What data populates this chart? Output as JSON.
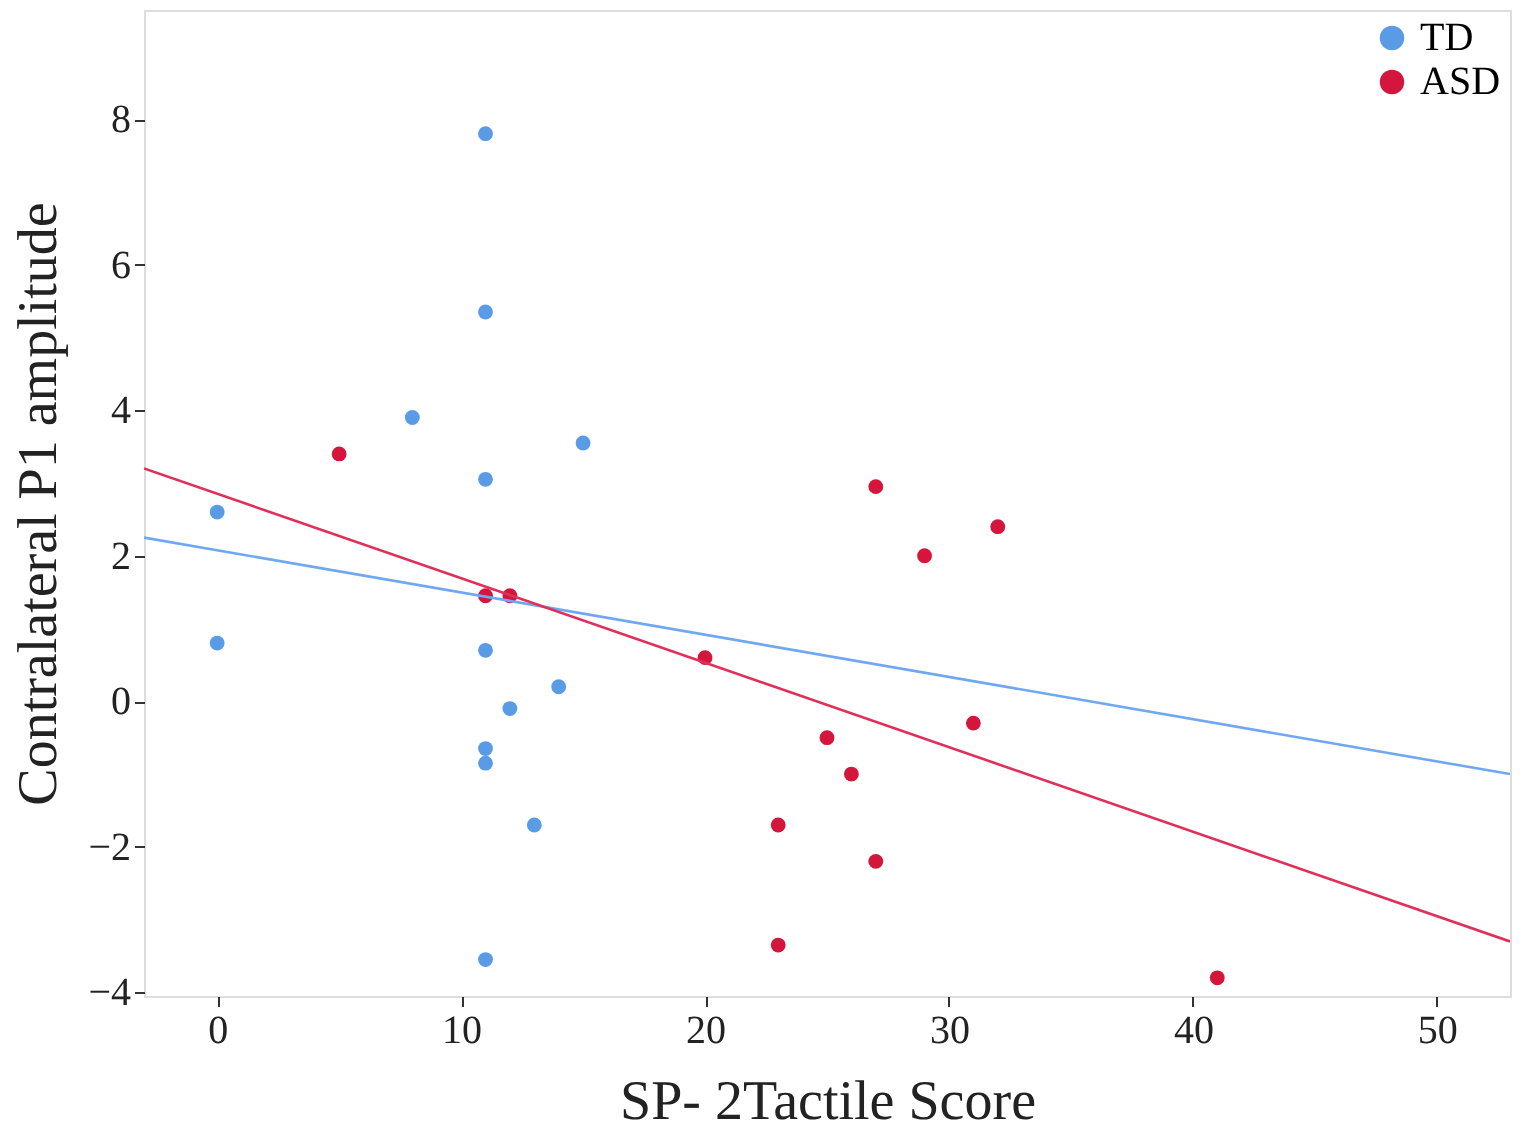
{
  "chart_data": {
    "type": "scatter",
    "xlabel": "SP- 2Tactile Score",
    "ylabel": "Contralateral P1 amplitude",
    "xlim": [
      -3,
      53
    ],
    "ylim": [
      -4.05,
      9.5
    ],
    "xticks": [
      0,
      10,
      20,
      30,
      40,
      50
    ],
    "yticks": [
      -4,
      -2,
      0,
      2,
      4,
      6,
      8
    ],
    "grid": false,
    "legend": "top right",
    "marker": "circle",
    "series": [
      {
        "name": "TD",
        "color": "#5a9be6",
        "x": [
          11,
          11,
          8,
          11,
          15,
          0,
          0,
          11,
          12,
          14,
          11,
          11,
          13,
          11
        ],
        "values": [
          7.8,
          5.35,
          3.9,
          3.05,
          3.55,
          2.6,
          0.8,
          0.7,
          -0.1,
          0.2,
          -0.65,
          -0.85,
          -1.7,
          -3.55
        ]
      },
      {
        "name": "ASD",
        "color": "#d4163c",
        "x": [
          5,
          11,
          12,
          20,
          27,
          29,
          32,
          25,
          26,
          31,
          23,
          27,
          23,
          41
        ],
        "values": [
          3.4,
          1.45,
          1.45,
          0.6,
          2.95,
          2.0,
          2.4,
          -0.5,
          -1.0,
          -0.3,
          -1.7,
          -2.2,
          -3.35,
          -3.8
        ]
      },
      {
        "type": "line",
        "marker": "none",
        "color": "#6fa8f0",
        "x": [
          -3,
          53
        ],
        "values": [
          2.25,
          -1.0
        ]
      },
      {
        "type": "line",
        "marker": "none",
        "color": "#e0305a",
        "x": [
          -3,
          53
        ],
        "values": [
          3.2,
          -3.3
        ]
      }
    ]
  }
}
